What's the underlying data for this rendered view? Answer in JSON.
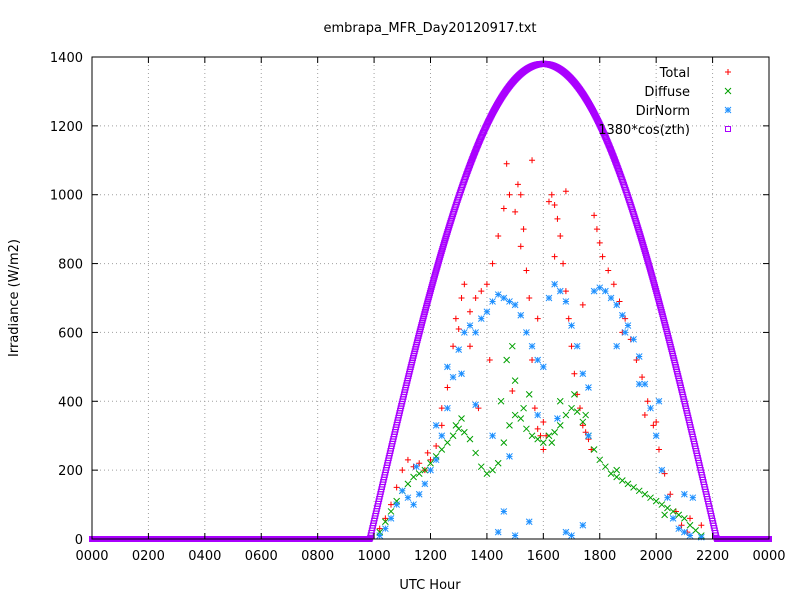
{
  "chart_data": {
    "type": "scatter",
    "title": "embrapa_MFR_Day20120917.txt",
    "xlabel": "UTC Hour",
    "ylabel": "Irradiance (W/m2)",
    "xlim": [
      0,
      24
    ],
    "ylim": [
      0,
      1400
    ],
    "grid": true,
    "legend_position": "top-right",
    "x_ticks": [
      {
        "value": 0,
        "label": "0000"
      },
      {
        "value": 2,
        "label": "0200"
      },
      {
        "value": 4,
        "label": "0400"
      },
      {
        "value": 6,
        "label": "0600"
      },
      {
        "value": 8,
        "label": "0800"
      },
      {
        "value": 10,
        "label": "1000"
      },
      {
        "value": 12,
        "label": "1200"
      },
      {
        "value": 14,
        "label": "1400"
      },
      {
        "value": 16,
        "label": "1600"
      },
      {
        "value": 18,
        "label": "1800"
      },
      {
        "value": 20,
        "label": "2000"
      },
      {
        "value": 22,
        "label": "2200"
      },
      {
        "value": 24,
        "label": "0000"
      }
    ],
    "y_ticks": [
      0,
      200,
      400,
      600,
      800,
      1000,
      1200,
      1400
    ],
    "series": [
      {
        "name": "Total",
        "marker": "plus",
        "color": "#ff0000",
        "points": [
          [
            10.2,
            30
          ],
          [
            10.4,
            60
          ],
          [
            10.6,
            100
          ],
          [
            10.8,
            150
          ],
          [
            11.0,
            200
          ],
          [
            11.2,
            230
          ],
          [
            11.4,
            210
          ],
          [
            11.6,
            220
          ],
          [
            11.8,
            200
          ],
          [
            12.0,
            230
          ],
          [
            12.2,
            270
          ],
          [
            12.4,
            380
          ],
          [
            12.6,
            440
          ],
          [
            12.8,
            560
          ],
          [
            13.0,
            610
          ],
          [
            13.1,
            700
          ],
          [
            13.2,
            740
          ],
          [
            13.4,
            660
          ],
          [
            13.6,
            700
          ],
          [
            13.8,
            720
          ],
          [
            14.0,
            740
          ],
          [
            14.2,
            800
          ],
          [
            14.4,
            880
          ],
          [
            14.6,
            960
          ],
          [
            14.8,
            1000
          ],
          [
            15.0,
            950
          ],
          [
            15.1,
            1030
          ],
          [
            15.2,
            1000
          ],
          [
            15.3,
            900
          ],
          [
            15.4,
            780
          ],
          [
            15.5,
            700
          ],
          [
            15.6,
            520
          ],
          [
            15.7,
            380
          ],
          [
            15.8,
            320
          ],
          [
            15.9,
            300
          ],
          [
            16.0,
            260
          ],
          [
            16.1,
            300
          ],
          [
            16.2,
            980
          ],
          [
            16.3,
            1000
          ],
          [
            16.4,
            970
          ],
          [
            16.5,
            930
          ],
          [
            16.6,
            880
          ],
          [
            16.7,
            800
          ],
          [
            16.8,
            720
          ],
          [
            16.9,
            640
          ],
          [
            17.0,
            560
          ],
          [
            17.1,
            480
          ],
          [
            17.2,
            420
          ],
          [
            17.3,
            380
          ],
          [
            17.4,
            330
          ],
          [
            17.5,
            310
          ],
          [
            17.6,
            290
          ],
          [
            17.7,
            260
          ],
          [
            17.8,
            940
          ],
          [
            17.9,
            900
          ],
          [
            18.0,
            860
          ],
          [
            18.1,
            820
          ],
          [
            18.3,
            780
          ],
          [
            18.5,
            740
          ],
          [
            18.7,
            690
          ],
          [
            18.9,
            640
          ],
          [
            19.1,
            580
          ],
          [
            19.3,
            520
          ],
          [
            19.5,
            470
          ],
          [
            19.7,
            400
          ],
          [
            19.9,
            330
          ],
          [
            20.1,
            260
          ],
          [
            20.3,
            190
          ],
          [
            20.5,
            130
          ],
          [
            20.7,
            80
          ],
          [
            20.9,
            40
          ],
          [
            21.1,
            20
          ],
          [
            14.7,
            1090
          ],
          [
            15.6,
            1100
          ],
          [
            16.8,
            1010
          ],
          [
            15.2,
            850
          ],
          [
            13.4,
            560
          ],
          [
            12.9,
            640
          ],
          [
            14.1,
            520
          ],
          [
            16.4,
            820
          ],
          [
            17.4,
            680
          ],
          [
            18.8,
            600
          ],
          [
            15.8,
            640
          ],
          [
            14.9,
            430
          ],
          [
            16.0,
            340
          ],
          [
            13.7,
            380
          ],
          [
            12.4,
            330
          ],
          [
            11.9,
            250
          ],
          [
            20.0,
            340
          ],
          [
            19.6,
            360
          ],
          [
            21.2,
            60
          ],
          [
            21.6,
            40
          ]
        ]
      },
      {
        "name": "Diffuse",
        "marker": "cross",
        "color": "#00a000",
        "points": [
          [
            10.2,
            20
          ],
          [
            10.4,
            50
          ],
          [
            10.6,
            80
          ],
          [
            10.8,
            110
          ],
          [
            11.0,
            140
          ],
          [
            11.2,
            160
          ],
          [
            11.4,
            180
          ],
          [
            11.6,
            190
          ],
          [
            11.8,
            200
          ],
          [
            12.0,
            220
          ],
          [
            12.2,
            240
          ],
          [
            12.4,
            260
          ],
          [
            12.6,
            280
          ],
          [
            12.8,
            300
          ],
          [
            13.0,
            320
          ],
          [
            13.2,
            310
          ],
          [
            13.4,
            290
          ],
          [
            13.6,
            250
          ],
          [
            13.8,
            210
          ],
          [
            14.0,
            190
          ],
          [
            14.2,
            200
          ],
          [
            14.4,
            220
          ],
          [
            14.6,
            280
          ],
          [
            14.8,
            330
          ],
          [
            15.0,
            360
          ],
          [
            15.2,
            350
          ],
          [
            15.4,
            320
          ],
          [
            15.6,
            300
          ],
          [
            15.8,
            290
          ],
          [
            16.0,
            280
          ],
          [
            16.2,
            300
          ],
          [
            16.4,
            310
          ],
          [
            16.6,
            330
          ],
          [
            16.8,
            360
          ],
          [
            17.0,
            380
          ],
          [
            17.2,
            370
          ],
          [
            17.4,
            340
          ],
          [
            17.6,
            300
          ],
          [
            17.8,
            260
          ],
          [
            18.0,
            230
          ],
          [
            18.2,
            210
          ],
          [
            18.4,
            190
          ],
          [
            18.6,
            180
          ],
          [
            18.8,
            170
          ],
          [
            19.0,
            160
          ],
          [
            19.2,
            150
          ],
          [
            19.4,
            140
          ],
          [
            19.6,
            130
          ],
          [
            19.8,
            120
          ],
          [
            20.0,
            110
          ],
          [
            20.2,
            100
          ],
          [
            20.4,
            90
          ],
          [
            20.6,
            80
          ],
          [
            20.8,
            70
          ],
          [
            21.0,
            60
          ],
          [
            21.2,
            40
          ],
          [
            21.4,
            25
          ],
          [
            21.6,
            10
          ],
          [
            14.5,
            400
          ],
          [
            15.0,
            460
          ],
          [
            15.5,
            420
          ],
          [
            16.6,
            400
          ],
          [
            17.1,
            420
          ],
          [
            13.1,
            350
          ],
          [
            12.9,
            330
          ],
          [
            14.9,
            560
          ],
          [
            14.7,
            520
          ],
          [
            15.3,
            380
          ],
          [
            17.5,
            360
          ],
          [
            16.3,
            280
          ],
          [
            18.6,
            200
          ],
          [
            20.3,
            70
          ]
        ]
      },
      {
        "name": "DirNorm",
        "marker": "star",
        "color": "#1e90ff",
        "points": [
          [
            10.2,
            10
          ],
          [
            10.4,
            30
          ],
          [
            10.6,
            60
          ],
          [
            10.8,
            100
          ],
          [
            11.0,
            140
          ],
          [
            11.2,
            120
          ],
          [
            11.4,
            100
          ],
          [
            11.6,
            130
          ],
          [
            11.8,
            160
          ],
          [
            12.0,
            200
          ],
          [
            12.2,
            230
          ],
          [
            12.4,
            300
          ],
          [
            12.6,
            380
          ],
          [
            12.8,
            470
          ],
          [
            13.0,
            550
          ],
          [
            13.2,
            600
          ],
          [
            13.4,
            620
          ],
          [
            13.6,
            600
          ],
          [
            13.8,
            640
          ],
          [
            14.0,
            660
          ],
          [
            14.2,
            690
          ],
          [
            14.4,
            710
          ],
          [
            14.6,
            700
          ],
          [
            14.8,
            690
          ],
          [
            15.0,
            680
          ],
          [
            15.2,
            650
          ],
          [
            15.4,
            600
          ],
          [
            15.6,
            560
          ],
          [
            15.8,
            520
          ],
          [
            16.0,
            500
          ],
          [
            16.2,
            700
          ],
          [
            16.4,
            740
          ],
          [
            16.6,
            720
          ],
          [
            16.8,
            690
          ],
          [
            17.0,
            620
          ],
          [
            17.2,
            560
          ],
          [
            17.4,
            480
          ],
          [
            17.6,
            440
          ],
          [
            17.8,
            720
          ],
          [
            18.0,
            730
          ],
          [
            18.2,
            720
          ],
          [
            18.4,
            700
          ],
          [
            18.6,
            680
          ],
          [
            18.8,
            650
          ],
          [
            19.0,
            620
          ],
          [
            19.2,
            580
          ],
          [
            19.4,
            530
          ],
          [
            19.6,
            450
          ],
          [
            19.8,
            380
          ],
          [
            20.0,
            300
          ],
          [
            20.2,
            200
          ],
          [
            20.4,
            120
          ],
          [
            20.6,
            60
          ],
          [
            20.8,
            30
          ],
          [
            21.0,
            20
          ],
          [
            21.2,
            10
          ],
          [
            21.6,
            5
          ],
          [
            14.4,
            20
          ],
          [
            14.6,
            80
          ],
          [
            15.0,
            10
          ],
          [
            15.5,
            50
          ],
          [
            16.8,
            20
          ],
          [
            17.0,
            10
          ],
          [
            17.4,
            40
          ],
          [
            13.6,
            390
          ],
          [
            14.2,
            300
          ],
          [
            15.8,
            360
          ],
          [
            17.6,
            300
          ],
          [
            18.6,
            560
          ],
          [
            19.4,
            450
          ],
          [
            20.1,
            400
          ],
          [
            21.0,
            130
          ],
          [
            21.3,
            120
          ],
          [
            12.6,
            500
          ],
          [
            13.1,
            480
          ],
          [
            16.5,
            350
          ],
          [
            14.8,
            240
          ],
          [
            18.9,
            600
          ],
          [
            11.5,
            210
          ],
          [
            12.2,
            330
          ]
        ]
      },
      {
        "name": "1380*cos(zth)",
        "marker": "square",
        "color": "#aa00ff",
        "curve": {
          "peak": 1380,
          "center": 16.0,
          "start": 9.85,
          "end": 22.15,
          "step": 0.02
        }
      }
    ]
  }
}
